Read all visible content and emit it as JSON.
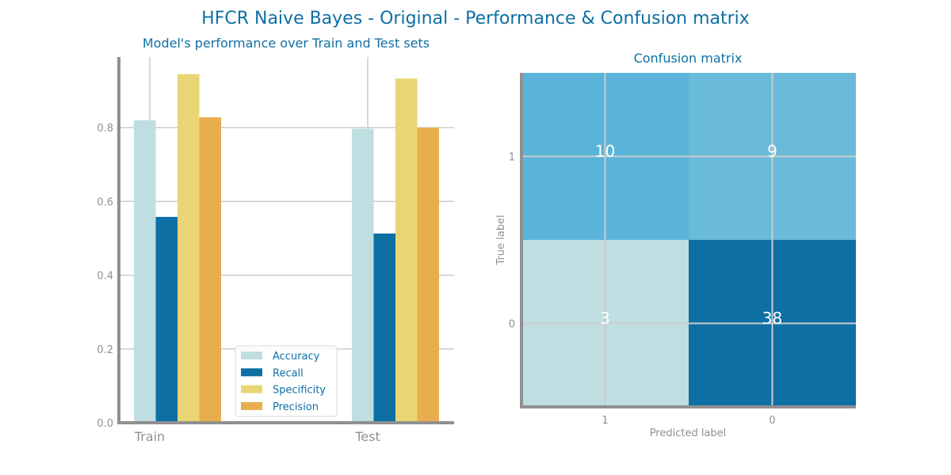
{
  "title": "HFCR Naive Bayes - Original - Performance & Confusion matrix",
  "colors": {
    "title": "#0e6fa5",
    "axis": "#909090",
    "grid": "#cccccc",
    "accuracy": "#bfdee2",
    "recall": "#0e6fa5",
    "specificity": "#ead575",
    "precision": "#e8ae4e"
  },
  "chart_data": [
    {
      "type": "bar",
      "title": "Model's performance over Train and Test sets",
      "categories": [
        "Train",
        "Test"
      ],
      "series": [
        {
          "name": "Accuracy",
          "values": [
            0.82,
            0.797
          ]
        },
        {
          "name": "Recall",
          "values": [
            0.558,
            0.513
          ]
        },
        {
          "name": "Specificity",
          "values": [
            0.945,
            0.933
          ]
        },
        {
          "name": "Precision",
          "values": [
            0.828,
            0.8
          ]
        }
      ],
      "ylim": [
        0,
        1.0
      ],
      "yticks": [
        "0.0",
        "0.2",
        "0.4",
        "0.6",
        "0.8"
      ],
      "grid": true,
      "legend_position": "lower-center"
    },
    {
      "type": "heatmap",
      "title": "Confusion matrix",
      "xlabel": "Predicted label",
      "ylabel": "True label",
      "x_categories": [
        "1",
        "0"
      ],
      "y_categories": [
        "1",
        "0"
      ],
      "values": [
        [
          10,
          9
        ],
        [
          3,
          38
        ]
      ],
      "cell_colors": [
        [
          "#5ab4d9",
          "#69bbd9"
        ],
        [
          "#bfdee2",
          "#0e6fa5"
        ]
      ]
    }
  ]
}
